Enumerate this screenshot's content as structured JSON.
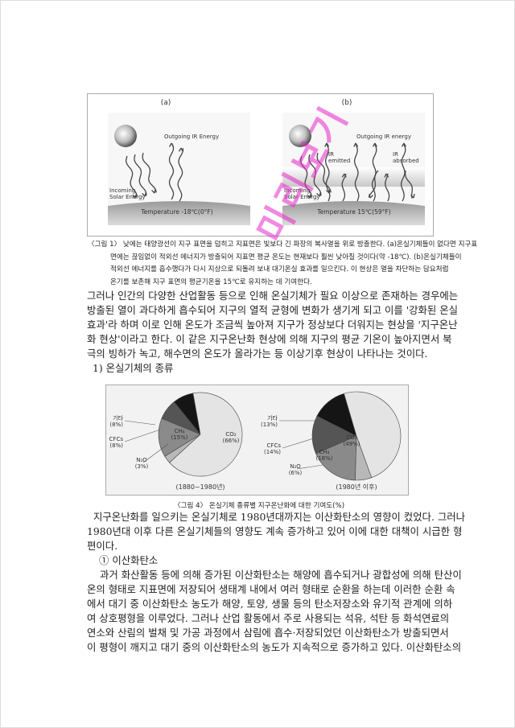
{
  "watermark": "미리보기",
  "figure1": {
    "panels": [
      {
        "label": "(a)",
        "outgoing": "Outgoing IR Energy",
        "incoming": [
          "Incoming",
          "Solar Energy"
        ],
        "temperature": "Temperature -18℃(0°F)"
      },
      {
        "label": "(b)",
        "outgoing": "Outgoing IR energy",
        "incoming": [
          "Incoming",
          "Solar Energy"
        ],
        "temperature": "Temperature 15℃(59°F)",
        "emitted": [
          "IR",
          "emitted"
        ],
        "absorbed": [
          "IR",
          "absorbed"
        ]
      }
    ],
    "caption_lines": [
      "〈그림 1〉 낮에는 태양광선이 지구 표면을 덥히고 지표면은 빛보다 긴 파장의 복사열을 위로 방출한다. (a)온실기체들이 없다면 지구표",
      "면에는 끊임없이 적외선 에너지가 방출되어 지표면 평균 온도는 현재보다 훨씬 낮아질 것이다(약 -18℃). (b)온실기체들이",
      "적외선 에너지를 흡수했다가 다시 지상으로 되돌려 보내 대기온실 효과를 일으킨다. 이 현상은 열을 차단하는 담요처럼",
      "온기를 보존해 지구 표면의 평균기온을 15℃로 유지하는 데 기여한다."
    ]
  },
  "paragraph1": [
    "그러나 인간의 다양한 산업활동 등으로 인해 온실기체가 필요 이상으로 존재하는 경우에는",
    "방출된 열이 과다하게 흡수되어 지구의 열적 균형에 변화가 생기게 되고 이를 '강화된 온실",
    "효과'라 하며 이로 인해 온도가 조금씩 높아져 지구가 정상보다 더워지는 현상을 '지구온난",
    "화 현상'이라고 한다. 이 같은 지구온난화 현상에 의해 지구의 평균 기온이 높아지면서 북",
    "극의 빙하가 녹고, 해수면의 온도가 올라가는 등 이상기후 현상이 나타나는 것이다."
  ],
  "heading1": "1) 온실기체의 종류",
  "chart_data": [
    {
      "type": "pie",
      "subtitle": "(1880~1980년)",
      "categories": [
        "기타",
        "CFCs",
        "CH₄",
        "N₂O",
        "CO₂"
      ],
      "values": [
        8,
        8,
        15,
        3,
        66
      ],
      "value_labels": [
        "(8%)",
        "(8%)",
        "(15%)",
        "(3%)",
        "(66%)"
      ],
      "colors": [
        "#151515",
        "#555555",
        "#8a8a8a",
        "#b8b8b8",
        "#e4e4e4"
      ]
    },
    {
      "type": "pie",
      "subtitle": "(1980년 이후)",
      "categories": [
        "기타",
        "CFCs",
        "CH₄",
        "N₂O",
        "CO₂"
      ],
      "values": [
        13,
        14,
        18,
        6,
        49
      ],
      "value_labels": [
        "(13%)",
        "(14%)",
        "(18%)",
        "(6%)",
        "(49%)"
      ],
      "colors": [
        "#151515",
        "#555555",
        "#8a8a8a",
        "#b8b8b8",
        "#e4e4e4"
      ]
    }
  ],
  "figure4_caption": "〈그림 4〉 온실기체 종류별 지구온난화에 대한 기여도(%)",
  "paragraph2": [
    "지구온난화를 일으키는 온실기체로 1980년대까지는 이산화탄소의 영향이 컸었다. 그러나",
    "1980년대 이후 다른 온실기체들의 영향도 계속 증가하고 있어 이에 대한 대책이 시급한 형",
    "편이다."
  ],
  "heading2": "① 이산화탄소",
  "paragraph3": [
    "과거 화산활동 등에 의해 증가된 이산화탄소는 해양에 흡수되거나 광합성에 의해 탄산이",
    "온의 형태로 지표면에 저장되어 생태계 내에서 여러 형태로 순환을 하는데 이러한 순환 속",
    "에서 대기 중 이산화탄소 농도가 해양, 토양, 생물 등의 탄소저장소와 유기적 관계에 의하",
    "여 상호평형을 이루었다. 그러나 산업 활동에서 주로 사용되는 석유, 석탄 등 화석연료의",
    "연소와 산림의 벌채 및 가공 과정에서 삼림에 흡수·저장되었던 이산화탄소가 방출되면서",
    "이 평형이 깨지고 대기 중의 이산화탄소의 농도가 지속적으로 증가하고 있다. 이산화탄소의"
  ]
}
